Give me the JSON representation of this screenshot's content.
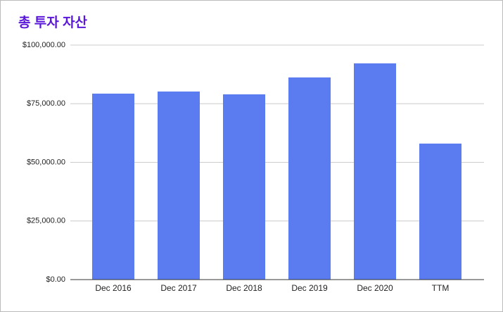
{
  "chart_data": {
    "type": "bar",
    "title": "총 투자 자산",
    "categories": [
      "Dec 2016",
      "Dec 2017",
      "Dec 2018",
      "Dec 2019",
      "Dec 2020",
      "TTM"
    ],
    "values": [
      79300,
      80200,
      79000,
      86200,
      92200,
      58000
    ],
    "color": "#5b7cf0",
    "ylim": [
      0,
      100000
    ],
    "yticks": [
      {
        "value": 0,
        "label": "$0.00"
      },
      {
        "value": 25000,
        "label": "$25,000.00"
      },
      {
        "value": 50000,
        "label": "$50,000.00"
      },
      {
        "value": 75000,
        "label": "$75,000.00"
      },
      {
        "value": 100000,
        "label": "$100,000.00"
      }
    ],
    "grid": true
  }
}
